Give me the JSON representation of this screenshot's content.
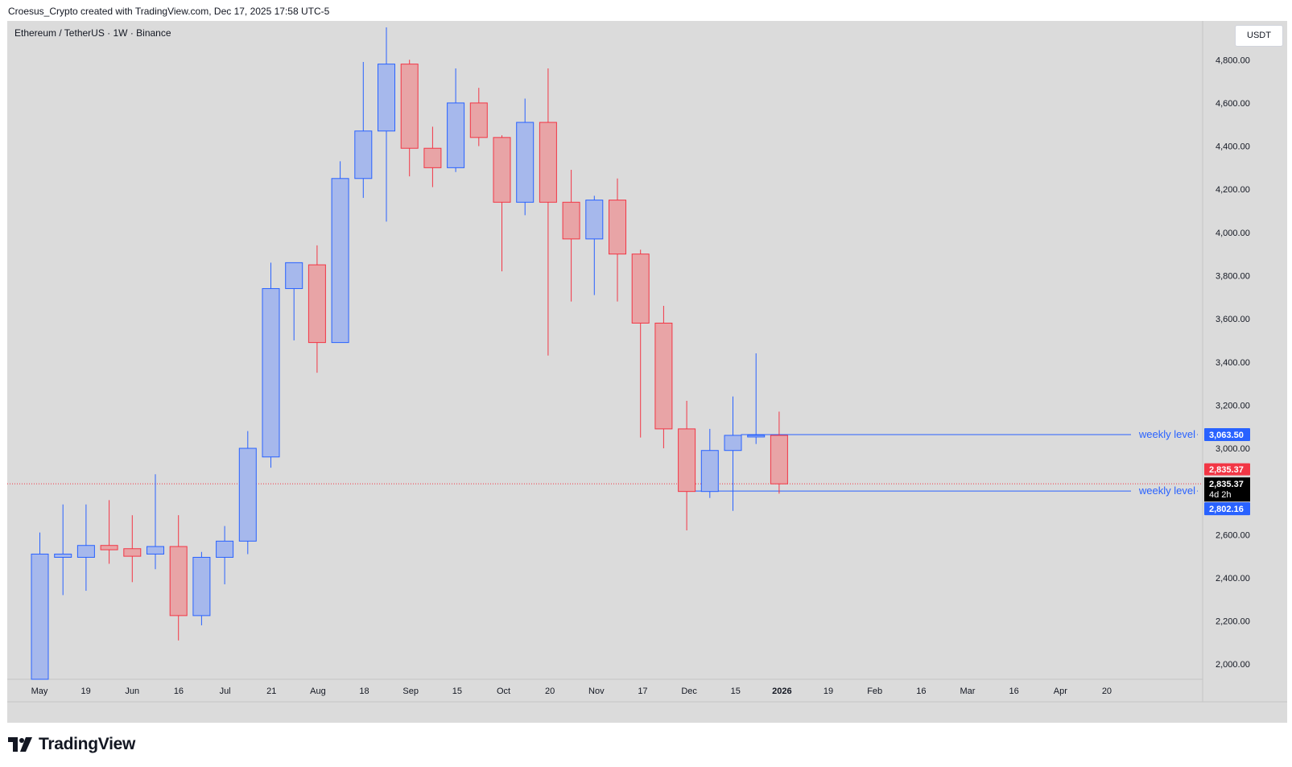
{
  "header": {
    "text": "Croesus_Crypto created with TradingView.com, Dec 17, 2025 17:58 UTC-5"
  },
  "symbol": {
    "title": "Ethereum / TetherUS · 1W · Binance",
    "currency": "USDT"
  },
  "footer": {
    "brand": "TradingView"
  },
  "colors": {
    "up_fill": "#a6b8ec",
    "up_border": "#2962ff",
    "down_fill": "#e8a4a6",
    "down_border": "#f23645",
    "level_line": "#2962ff",
    "price_line": "#f23645",
    "background": "#dbdbdb"
  },
  "chart_data": {
    "type": "candlestick",
    "interval": "1W",
    "ylim": [
      1930,
      4980
    ],
    "y_ticks": [
      "2,000.00",
      "2,200.00",
      "2,400.00",
      "2,600.00",
      "2,800.00",
      "3,000.00",
      "3,200.00",
      "3,400.00",
      "3,600.00",
      "3,800.00",
      "4,000.00",
      "4,200.00",
      "4,400.00",
      "4,600.00",
      "4,800.00"
    ],
    "y_tick_values": [
      2000,
      2200,
      2400,
      2600,
      2800,
      3000,
      3200,
      3400,
      3600,
      3800,
      4000,
      4200,
      4400,
      4600,
      4800
    ],
    "x_ticks": [
      {
        "label": "May",
        "bold": false
      },
      {
        "label": "19",
        "bold": false
      },
      {
        "label": "Jun",
        "bold": false
      },
      {
        "label": "16",
        "bold": false
      },
      {
        "label": "Jul",
        "bold": false
      },
      {
        "label": "21",
        "bold": false
      },
      {
        "label": "Aug",
        "bold": false
      },
      {
        "label": "18",
        "bold": false
      },
      {
        "label": "Sep",
        "bold": false
      },
      {
        "label": "15",
        "bold": false
      },
      {
        "label": "Oct",
        "bold": false
      },
      {
        "label": "20",
        "bold": false
      },
      {
        "label": "Nov",
        "bold": false
      },
      {
        "label": "17",
        "bold": false
      },
      {
        "label": "Dec",
        "bold": false
      },
      {
        "label": "15",
        "bold": false
      },
      {
        "label": "2026",
        "bold": true
      },
      {
        "label": "19",
        "bold": false
      },
      {
        "label": "Feb",
        "bold": false
      },
      {
        "label": "16",
        "bold": false
      },
      {
        "label": "Mar",
        "bold": false
      },
      {
        "label": "16",
        "bold": false
      },
      {
        "label": "Apr",
        "bold": false
      },
      {
        "label": "20",
        "bold": false
      }
    ],
    "candles": [
      {
        "o": 1930,
        "h": 2610,
        "l": 1930,
        "c": 2510
      },
      {
        "o": 2495,
        "h": 2740,
        "l": 2320,
        "c": 2510
      },
      {
        "o": 2495,
        "h": 2740,
        "l": 2340,
        "c": 2550
      },
      {
        "o": 2550,
        "h": 2760,
        "l": 2465,
        "c": 2530
      },
      {
        "o": 2535,
        "h": 2690,
        "l": 2380,
        "c": 2500
      },
      {
        "o": 2510,
        "h": 2880,
        "l": 2440,
        "c": 2545
      },
      {
        "o": 2545,
        "h": 2690,
        "l": 2110,
        "c": 2225
      },
      {
        "o": 2225,
        "h": 2520,
        "l": 2180,
        "c": 2495
      },
      {
        "o": 2495,
        "h": 2640,
        "l": 2370,
        "c": 2570
      },
      {
        "o": 2570,
        "h": 3080,
        "l": 2510,
        "c": 3000
      },
      {
        "o": 2960,
        "h": 3860,
        "l": 2910,
        "c": 3740
      },
      {
        "o": 3740,
        "h": 3860,
        "l": 3500,
        "c": 3860
      },
      {
        "o": 3850,
        "h": 3940,
        "l": 3350,
        "c": 3490
      },
      {
        "o": 3490,
        "h": 4330,
        "l": 3490,
        "c": 4250
      },
      {
        "o": 4250,
        "h": 4790,
        "l": 4160,
        "c": 4470
      },
      {
        "o": 4470,
        "h": 4950,
        "l": 4050,
        "c": 4780
      },
      {
        "o": 4780,
        "h": 4800,
        "l": 4260,
        "c": 4390
      },
      {
        "o": 4390,
        "h": 4490,
        "l": 4210,
        "c": 4300
      },
      {
        "o": 4300,
        "h": 4760,
        "l": 4280,
        "c": 4600
      },
      {
        "o": 4600,
        "h": 4670,
        "l": 4400,
        "c": 4440
      },
      {
        "o": 4440,
        "h": 4450,
        "l": 3820,
        "c": 4140
      },
      {
        "o": 4140,
        "h": 4620,
        "l": 4080,
        "c": 4510
      },
      {
        "o": 4510,
        "h": 4760,
        "l": 3430,
        "c": 4140
      },
      {
        "o": 4140,
        "h": 4290,
        "l": 3680,
        "c": 3970
      },
      {
        "o": 3970,
        "h": 4170,
        "l": 3710,
        "c": 4150
      },
      {
        "o": 4150,
        "h": 4250,
        "l": 3680,
        "c": 3900
      },
      {
        "o": 3900,
        "h": 3920,
        "l": 3050,
        "c": 3580
      },
      {
        "o": 3580,
        "h": 3660,
        "l": 3000,
        "c": 3090
      },
      {
        "o": 3090,
        "h": 3220,
        "l": 2620,
        "c": 2800
      },
      {
        "o": 2800,
        "h": 3090,
        "l": 2770,
        "c": 2990
      },
      {
        "o": 2990,
        "h": 3240,
        "l": 2710,
        "c": 3060
      },
      {
        "o": 3060,
        "h": 3440,
        "l": 3020,
        "c": 3060
      },
      {
        "o": 3060,
        "h": 3170,
        "l": 2790,
        "c": 2835.37
      }
    ],
    "levels": [
      {
        "label": "weekly level",
        "value": 3063.5,
        "tag": "3,063.50"
      },
      {
        "label": "weekly level",
        "value": 2802.16,
        "tag": "2,802.16"
      }
    ],
    "last_price": {
      "value": 2835.37,
      "tag": "2,835.37",
      "black_tag": "2,835.37",
      "countdown": "4d 2h"
    }
  }
}
